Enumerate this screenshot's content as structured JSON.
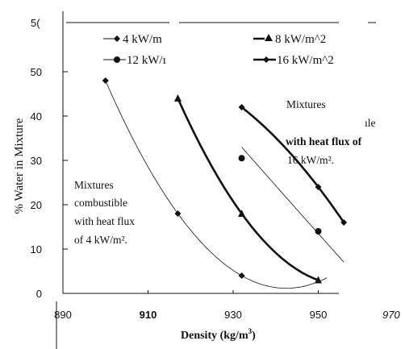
{
  "chart_data": {
    "type": "line",
    "title": "",
    "xlabel": "Density (kg/m",
    "xlabel_sup": "3",
    "xlabel_close": ")",
    "ylabel": "% Water in Mixture",
    "xlim": [
      890,
      970
    ],
    "ylim": [
      0,
      60
    ],
    "x_ticks": [
      "890",
      "910",
      "930",
      "950",
      "970"
    ],
    "y_ticks": [
      "0",
      "10",
      "20",
      "30",
      "40",
      "50"
    ],
    "y_top_tick_partial": "5(",
    "grid": false,
    "legend_position": "top",
    "series": [
      {
        "name": "4 kW/m",
        "marker": "diamond",
        "line": "thin",
        "points": [
          [
            900,
            48
          ],
          [
            917,
            18
          ],
          [
            932,
            4
          ]
        ]
      },
      {
        "name": "8 kW/m^2",
        "marker": "triangle",
        "line": "thick",
        "points": [
          [
            917,
            44
          ],
          [
            932,
            18
          ],
          [
            950,
            3
          ]
        ]
      },
      {
        "name": "12 kW/ı",
        "marker": "circle",
        "line": "thin",
        "points": [
          [
            932,
            30.5
          ],
          [
            950,
            14
          ]
        ]
      },
      {
        "name": "16 kW/m^2",
        "marker": "diamond",
        "line": "thick",
        "points": [
          [
            932,
            42
          ],
          [
            950,
            24
          ],
          [
            956,
            16
          ]
        ]
      }
    ],
    "annotations": [
      {
        "lines": [
          "Mixtures",
          "combustible",
          "with heat flux",
          "of  4 kW/m²."
        ]
      },
      {
        "lines": [
          "Mixtures",
          "ıle",
          "with heat flux of",
          "16 kW/m²."
        ]
      }
    ]
  }
}
